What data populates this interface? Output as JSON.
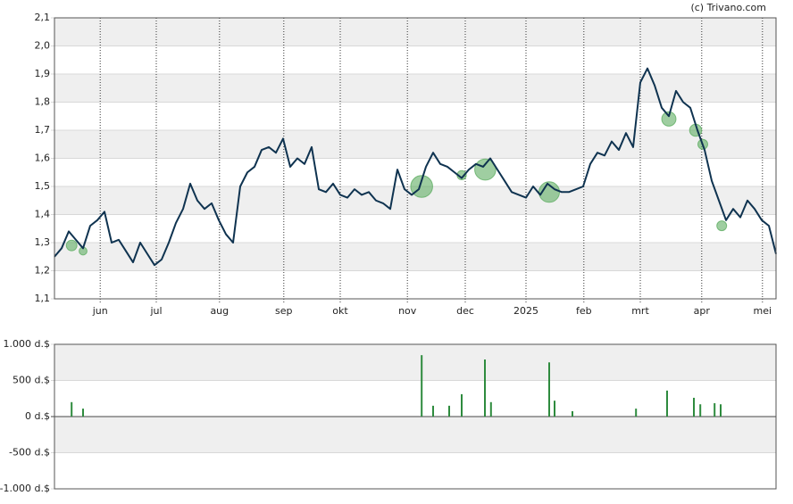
{
  "credit": "(c) Trivano.com",
  "chart_data": [
    {
      "type": "line",
      "xlim": [
        0,
        101
      ],
      "xticks": [
        {
          "value": 6.4,
          "label": "jun"
        },
        {
          "value": 14.25,
          "label": "jul"
        },
        {
          "value": 23.1,
          "label": "aug"
        },
        {
          "value": 32.1,
          "label": "sep"
        },
        {
          "value": 40,
          "label": "okt"
        },
        {
          "value": 49.4,
          "label": "nov"
        },
        {
          "value": 57.5,
          "label": "dec"
        },
        {
          "value": 66,
          "label": "2025"
        },
        {
          "value": 74.1,
          "label": "feb"
        },
        {
          "value": 82,
          "label": "mrt"
        },
        {
          "value": 90.6,
          "label": "apr"
        },
        {
          "value": 99.1,
          "label": "mei"
        }
      ],
      "ylim": [
        1.1,
        2.1
      ],
      "yticks": [
        {
          "value": 1.1,
          "label": "1,1"
        },
        {
          "value": 1.2,
          "label": "1,2"
        },
        {
          "value": 1.3,
          "label": "1,3"
        },
        {
          "value": 1.4,
          "label": "1,4"
        },
        {
          "value": 1.5,
          "label": "1,5"
        },
        {
          "value": 1.6,
          "label": "1,6"
        },
        {
          "value": 1.7,
          "label": "1,7"
        },
        {
          "value": 1.8,
          "label": "1,8"
        },
        {
          "value": 1.9,
          "label": "1,9"
        },
        {
          "value": 2.0,
          "label": "2,0"
        },
        {
          "value": 2.1,
          "label": "2,1"
        }
      ],
      "series": [
        {
          "color": "#0f3350",
          "x": [
            0,
            1,
            2,
            3,
            4,
            5,
            6,
            7,
            8,
            9,
            10,
            11,
            12,
            13,
            14,
            15,
            16,
            17,
            18,
            19,
            20,
            21,
            22,
            23,
            24,
            25,
            26,
            27,
            28,
            29,
            30,
            31,
            32,
            33,
            34,
            35,
            36,
            37,
            38,
            39,
            40,
            41,
            42,
            43,
            44,
            45,
            46,
            47,
            48,
            49,
            50,
            51,
            52,
            53,
            54,
            55,
            56,
            57,
            58,
            59,
            60,
            61,
            62,
            63,
            64,
            65,
            66,
            67,
            68,
            69,
            70,
            71,
            72,
            73,
            74,
            75,
            76,
            77,
            78,
            79,
            80,
            81,
            82,
            83,
            84,
            85,
            86,
            87,
            88,
            89,
            90,
            91,
            92,
            93,
            94,
            95,
            96,
            97,
            98,
            99,
            100,
            101
          ],
          "values": [
            1.25,
            1.28,
            1.34,
            1.31,
            1.28,
            1.36,
            1.38,
            1.41,
            1.3,
            1.31,
            1.27,
            1.23,
            1.3,
            1.26,
            1.22,
            1.24,
            1.3,
            1.37,
            1.42,
            1.51,
            1.45,
            1.42,
            1.44,
            1.38,
            1.33,
            1.3,
            1.5,
            1.55,
            1.57,
            1.63,
            1.64,
            1.62,
            1.67,
            1.57,
            1.6,
            1.58,
            1.64,
            1.49,
            1.48,
            1.51,
            1.47,
            1.46,
            1.49,
            1.47,
            1.48,
            1.45,
            1.44,
            1.42,
            1.56,
            1.49,
            1.47,
            1.49,
            1.57,
            1.62,
            1.58,
            1.57,
            1.55,
            1.53,
            1.56,
            1.58,
            1.57,
            1.6,
            1.56,
            1.52,
            1.48,
            1.47,
            1.46,
            1.5,
            1.47,
            1.51,
            1.49,
            1.48,
            1.48,
            1.49,
            1.5,
            1.58,
            1.62,
            1.61,
            1.66,
            1.63,
            1.69,
            1.64,
            1.87,
            1.92,
            1.86,
            1.78,
            1.75,
            1.84,
            1.8,
            1.78,
            1.7,
            1.63,
            1.52,
            1.45,
            1.38,
            1.42,
            1.39,
            1.45,
            1.42,
            1.38,
            1.36,
            1.26
          ]
        }
      ],
      "bubbles": {
        "color": "#5fae63",
        "x": [
          2.4,
          4,
          51.4,
          57,
          60.3,
          69.25,
          86,
          89.75,
          90.75,
          93.4
        ],
        "values": [
          1.29,
          1.27,
          1.5,
          1.54,
          1.56,
          1.48,
          1.74,
          1.7,
          1.65,
          1.36
        ],
        "sizes": [
          200,
          110,
          850,
          150,
          790,
          750,
          360,
          260,
          170,
          170
        ]
      },
      "grid": true
    },
    {
      "type": "bar",
      "color": "#2e8b3e",
      "xlim": [
        0,
        101
      ],
      "x": [
        2.4,
        4,
        51.4,
        53,
        55.25,
        57,
        60.25,
        61.1,
        69.25,
        70,
        72.5,
        81.4,
        85.75,
        89.5,
        90.4,
        92.4,
        93.25
      ],
      "values": [
        200,
        110,
        850,
        150,
        150,
        310,
        790,
        200,
        750,
        220,
        75,
        110,
        360,
        260,
        170,
        185,
        170
      ],
      "ylim": [
        -1000,
        1000
      ],
      "yticks": [
        {
          "value": -1000,
          "label": "-1.000 d.$"
        },
        {
          "value": -500,
          "label": "-500 d.$"
        },
        {
          "value": 0,
          "label": "0 d.$"
        },
        {
          "value": 500,
          "label": "500 d.$"
        },
        {
          "value": 1000,
          "label": "1.000 d.$"
        }
      ],
      "grid": true
    }
  ]
}
